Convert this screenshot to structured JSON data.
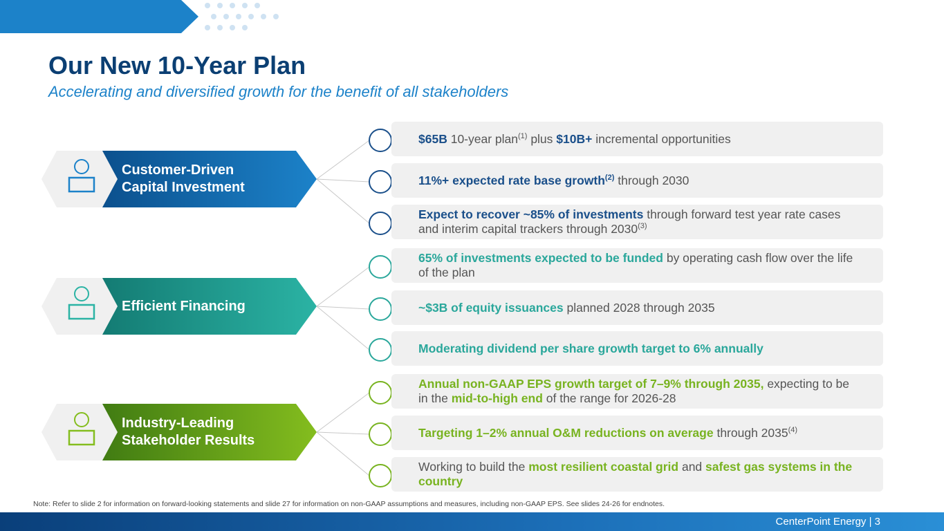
{
  "header": {
    "title": "Our New 10-Year Plan",
    "subtitle": "Accelerating and diversified growth for the benefit of all stakeholders"
  },
  "pillars": [
    {
      "label": [
        "Customer-Driven",
        "Capital Investment"
      ],
      "color": "#1c82c9",
      "dark": "#0b4f8c",
      "accent": "#1a4f8a",
      "items": [
        [
          {
            "text": "$65B",
            "bold": true
          },
          {
            "text": " 10-year plan"
          },
          {
            "text": "(1)",
            "sup": true
          },
          {
            "text": " plus "
          },
          {
            "text": "$10B+",
            "bold": true
          },
          {
            "text": " incremental opportunities"
          }
        ],
        [
          {
            "text": "11%+ expected rate base growth",
            "bold": true
          },
          {
            "text": "(2)",
            "sup": true,
            "bold": true
          },
          {
            "text": " through 2030"
          }
        ],
        [
          {
            "text": "Expect to recover ~85% of investments",
            "bold": true
          },
          {
            "text": " through forward test year rate cases and interim capital trackers through 2030"
          },
          {
            "text": "(3)",
            "sup": true
          }
        ]
      ]
    },
    {
      "label": [
        "Efficient Financing"
      ],
      "color": "#2bb3a4",
      "dark": "#137a72",
      "accent": "#2aa79b",
      "items": [
        [
          {
            "text": "65% of investments expected to be funded",
            "bold": true
          },
          {
            "text": " by operating cash flow over the life of the plan"
          }
        ],
        [
          {
            "text": "~$3B of equity issuances",
            "bold": true
          },
          {
            "text": " planned 2028 through 2035"
          }
        ],
        [
          {
            "text": "Moderating dividend per share growth target to 6% annually",
            "bold": true
          }
        ]
      ]
    },
    {
      "label": [
        "Industry-Leading",
        "Stakeholder Results"
      ],
      "color": "#84bd1e",
      "dark": "#3f7a12",
      "accent": "#78b320",
      "items": [
        [
          {
            "text": "Annual non-GAAP EPS growth target of 7–9% through 2035,",
            "bold": true
          },
          {
            "text": " expecting to be in the "
          },
          {
            "text": "mid-to-high end",
            "bold": true
          },
          {
            "text": " of the range for 2026-28"
          }
        ],
        [
          {
            "text": "Targeting 1–2% annual O&M reductions on average",
            "bold": true
          },
          {
            "text": " through 2035"
          },
          {
            "text": "(4)",
            "sup": true
          }
        ],
        [
          {
            "text": "Working to build the "
          },
          {
            "text": "most resilient coastal grid",
            "bold": true
          },
          {
            "text": " and "
          },
          {
            "text": "safest gas systems in the country",
            "bold": true
          }
        ]
      ]
    }
  ],
  "footer": {
    "note": "Note: Refer to slide 2 for information on forward-looking statements and slide 27 for information on non-GAAP assumptions and measures, including non-GAAP EPS. See slides 24-26 for endnotes.",
    "brand": "CenterPoint Energy | 3"
  }
}
